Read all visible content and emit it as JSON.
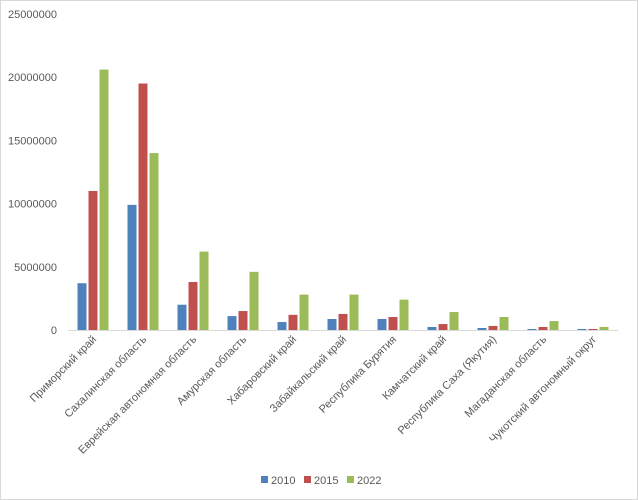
{
  "chart_data": {
    "type": "bar",
    "title": "",
    "xlabel": "",
    "ylabel": "",
    "ylim": [
      0,
      25000000
    ],
    "yticks": [
      "0",
      "5000000",
      "10000000",
      "15000000",
      "20000000",
      "25000000"
    ],
    "grid": false,
    "legend_position": "bottom",
    "categories": [
      "Приморский край",
      "Сахалинская область",
      "Еврейская автономная область",
      "Амурская область",
      "Хабаровский край",
      "Забайкальский край",
      "Республика Бурятия",
      "Камчатский край",
      "Республика Саха (Якутия)",
      "Магаданская область",
      "Чукотский автономный округ"
    ],
    "series": [
      {
        "name": "2010",
        "color": "#4f81bd",
        "values": [
          3700000,
          9900000,
          2000000,
          1100000,
          630000,
          870000,
          870000,
          240000,
          160000,
          80000,
          80000
        ]
      },
      {
        "name": "2015",
        "color": "#c0504d",
        "values": [
          11000000,
          19500000,
          3800000,
          1500000,
          1200000,
          1270000,
          1030000,
          470000,
          320000,
          240000,
          80000
        ]
      },
      {
        "name": "2022",
        "color": "#9bbb59",
        "values": [
          20600000,
          14000000,
          6200000,
          4600000,
          2800000,
          2800000,
          2400000,
          1420000,
          1030000,
          710000,
          240000
        ]
      }
    ]
  }
}
